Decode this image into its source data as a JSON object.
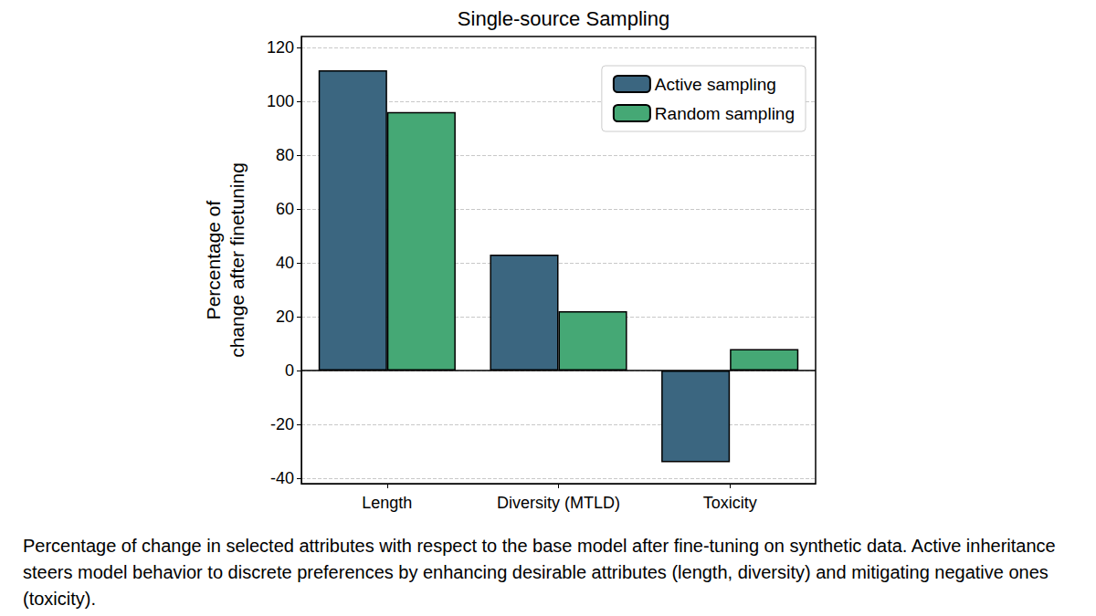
{
  "chart_data": {
    "type": "bar",
    "title": "Single-source Sampling",
    "y_label": "Percentage of\nchange after finetuning",
    "categories": [
      "Length",
      "Diversity (MTLD)",
      "Toxicity"
    ],
    "series": [
      {
        "name": "Active sampling",
        "color": "#3b6680",
        "values": [
          111.5,
          43,
          -34
        ]
      },
      {
        "name": "Random sampling",
        "color": "#45a875",
        "values": [
          96,
          22,
          8
        ]
      }
    ],
    "ylim": [
      -42,
      124
    ],
    "yticks": [
      -40,
      -20,
      0,
      20,
      40,
      60,
      80,
      100,
      120
    ],
    "grid": true,
    "legend": "upper right",
    "caption": "Percentage of change in selected attributes with respect to the base model after fine-tuning on synthetic data. Active inheritance steers model behavior to discrete preferences by enhancing desirable attributes (length, diversity) and mitigating negative ones (toxicity)."
  }
}
